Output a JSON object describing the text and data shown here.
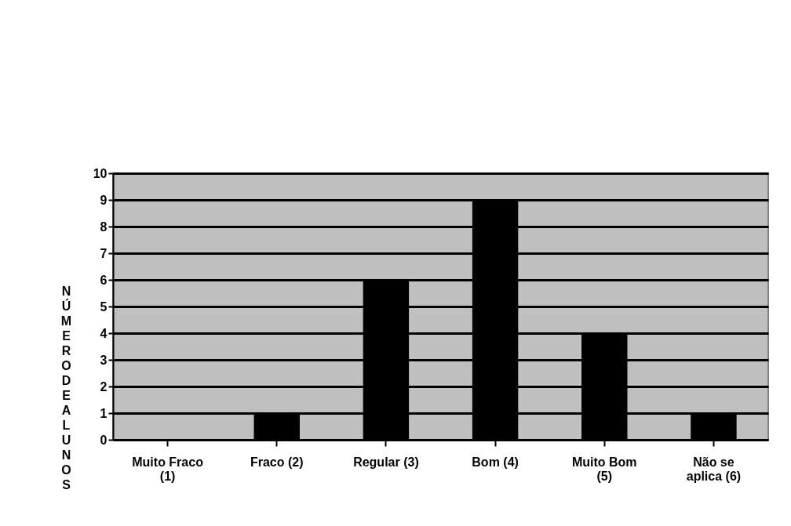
{
  "chart_data": {
    "type": "bar",
    "ylabel": "NÚMERO DE ALUNOS",
    "categories": [
      "Muito Fraco (1)",
      "Fraco (2)",
      "Regular (3)",
      "Bom (4)",
      "Muito Bom (5)",
      "Não se aplica (6)"
    ],
    "values": [
      0,
      1,
      6,
      9,
      4,
      1
    ],
    "color": "#000000",
    "ylim": [
      0,
      10
    ],
    "yticks": [
      0,
      1,
      2,
      3,
      4,
      5,
      6,
      7,
      8,
      9,
      10
    ],
    "grid": "y"
  }
}
